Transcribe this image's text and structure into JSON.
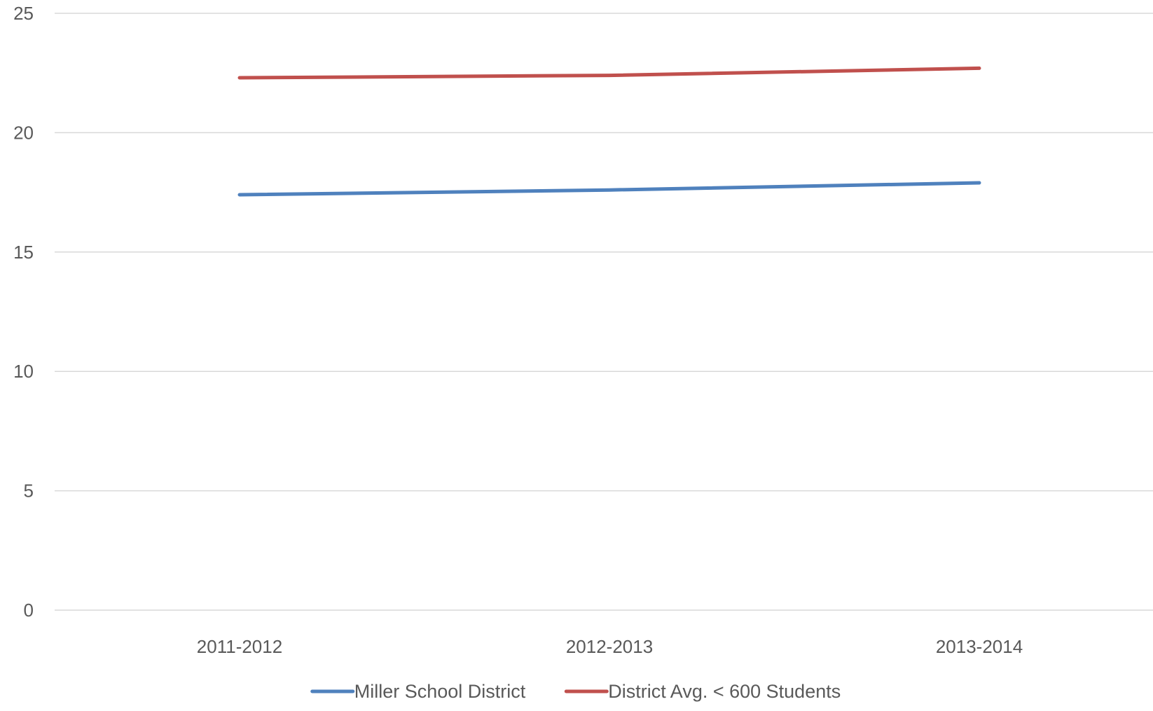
{
  "chart_data": {
    "type": "line",
    "title": "",
    "xlabel": "",
    "ylabel": "",
    "categories": [
      "2011-2012",
      "2012-2013",
      "2013-2014"
    ],
    "series": [
      {
        "name": "Miller School District",
        "color": "#4f81bd",
        "values": [
          17.4,
          17.6,
          17.9
        ]
      },
      {
        "name": "District Avg. < 600 Students",
        "color": "#c0504d",
        "values": [
          22.3,
          22.4,
          22.7
        ]
      }
    ],
    "ylim": [
      0,
      25
    ],
    "yticks": [
      0,
      5,
      10,
      15,
      20,
      25
    ],
    "grid": true,
    "legend_position": "bottom"
  }
}
